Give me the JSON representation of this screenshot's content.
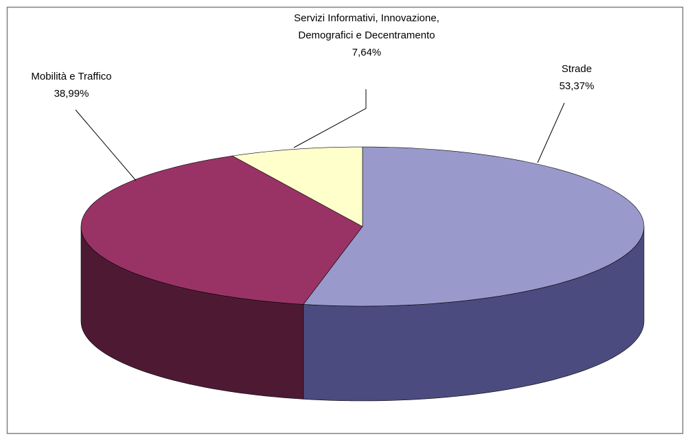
{
  "chart_data": {
    "type": "pie3d",
    "categories": [
      "Strade",
      "Mobilità e Traffico",
      "Servizi Informativi, Innovazione,\nDemografici e Decentramento"
    ],
    "values": [
      53.37,
      38.99,
      7.64
    ],
    "value_labels": [
      "53,37%",
      "38,99%",
      "7,64%"
    ],
    "colors": [
      "#9999cc",
      "#993366",
      "#ffffcc"
    ],
    "side_colors": [
      "#4b4b7f",
      "#4e1a33",
      "#80806a"
    ]
  }
}
